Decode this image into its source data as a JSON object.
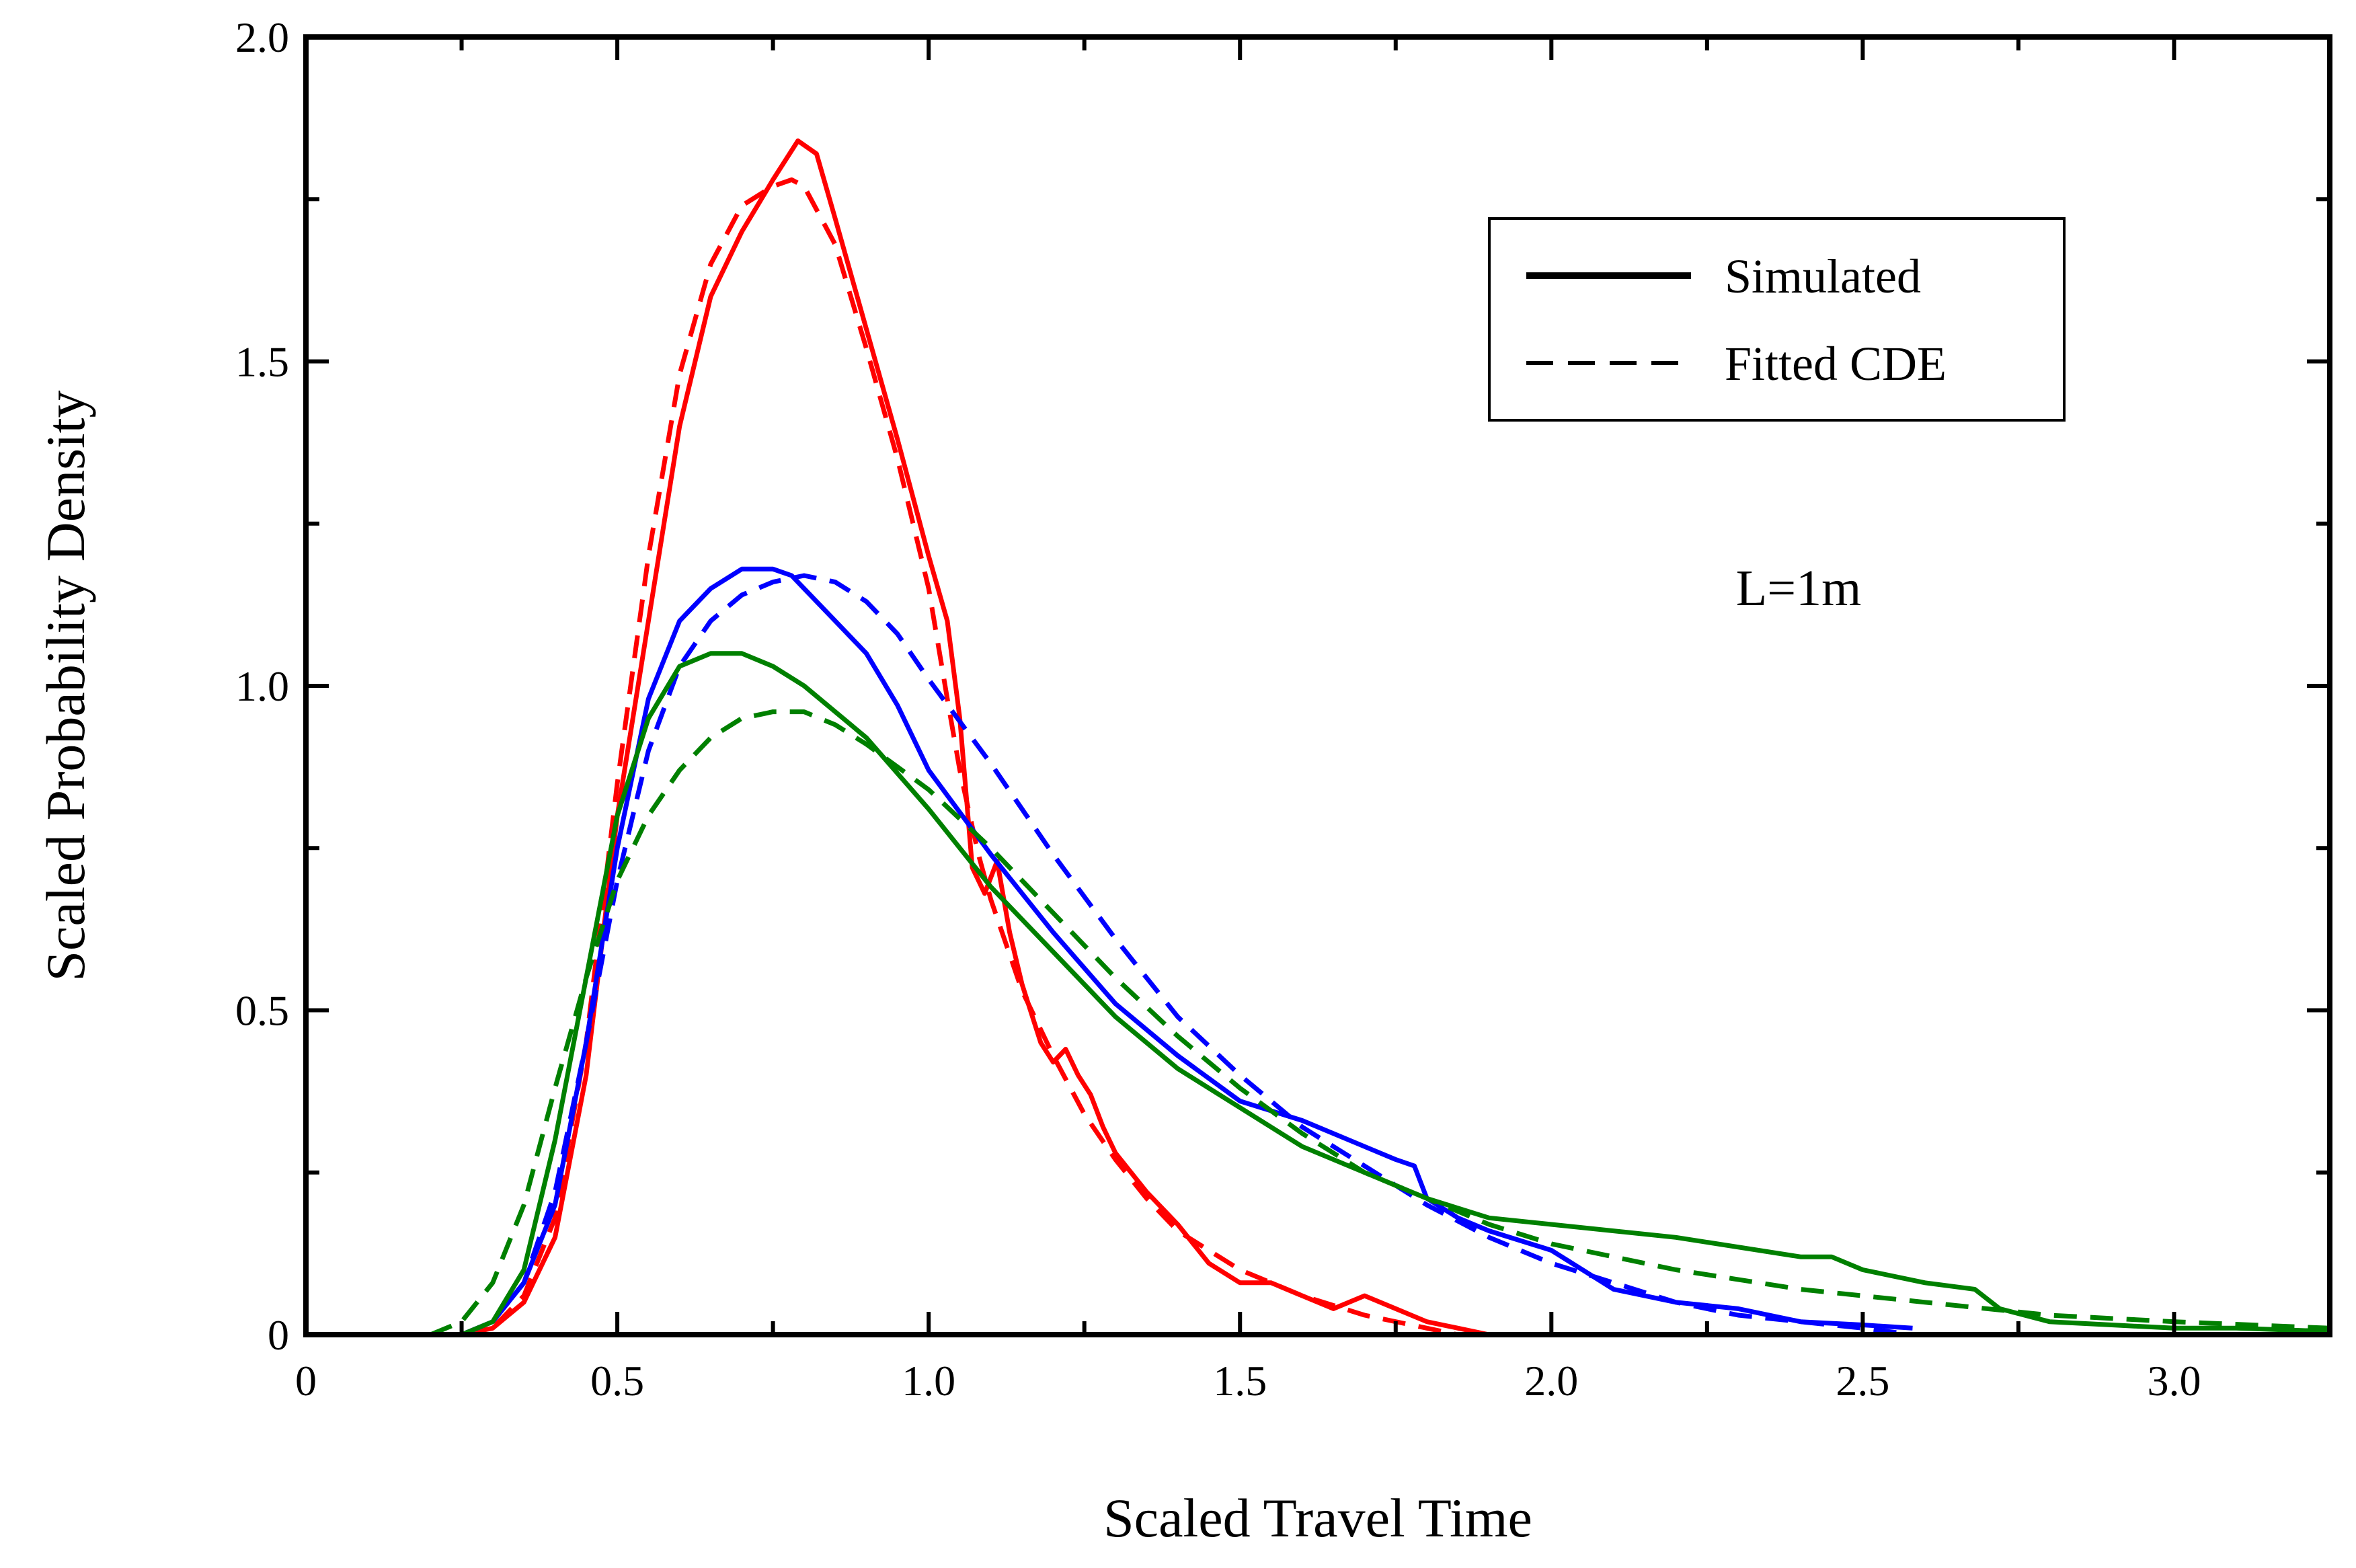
{
  "chart_data": {
    "type": "line",
    "title": "",
    "xlabel": "Scaled Travel Time",
    "ylabel": "Scaled Probability Density",
    "xlim": [
      0,
      3.25
    ],
    "ylim": [
      0,
      2.0
    ],
    "x_ticks": [
      0,
      0.5,
      1.0,
      1.5,
      2.0,
      2.5,
      3.0
    ],
    "x_tick_labels": [
      "0",
      "0.5",
      "1.0",
      "1.5",
      "2.0",
      "2.5",
      "3.0"
    ],
    "y_ticks": [
      0,
      0.5,
      1.0,
      1.5,
      2.0
    ],
    "y_tick_labels": [
      "0",
      "0.5",
      "1.0",
      "1.5",
      "2.0"
    ],
    "grid": false,
    "legend": {
      "placement": "top-right",
      "entries": [
        {
          "label": "Simulated",
          "style": "solid"
        },
        {
          "label": "Fitted CDE",
          "style": "dashed"
        }
      ]
    },
    "annotation": "L=1m",
    "series": [
      {
        "name": "red simulated",
        "color": "#ff0000",
        "style": "solid",
        "x": [
          0.25,
          0.3,
          0.35,
          0.4,
          0.45,
          0.5,
          0.55,
          0.6,
          0.65,
          0.7,
          0.75,
          0.79,
          0.82,
          0.85,
          0.9,
          0.95,
          1.0,
          1.03,
          1.05,
          1.07,
          1.09,
          1.11,
          1.13,
          1.15,
          1.18,
          1.2,
          1.22,
          1.24,
          1.26,
          1.28,
          1.3,
          1.35,
          1.4,
          1.45,
          1.5,
          1.55,
          1.6,
          1.65,
          1.7,
          1.75,
          1.8,
          1.85,
          1.9
        ],
        "y": [
          0.0,
          0.01,
          0.05,
          0.15,
          0.4,
          0.8,
          1.1,
          1.4,
          1.6,
          1.7,
          1.78,
          1.84,
          1.82,
          1.72,
          1.55,
          1.38,
          1.2,
          1.1,
          0.95,
          0.72,
          0.68,
          0.73,
          0.62,
          0.54,
          0.45,
          0.42,
          0.44,
          0.4,
          0.37,
          0.32,
          0.28,
          0.22,
          0.17,
          0.11,
          0.08,
          0.08,
          0.06,
          0.04,
          0.06,
          0.04,
          0.02,
          0.01,
          0.0
        ]
      },
      {
        "name": "red fitted",
        "color": "#ff0000",
        "style": "dashed",
        "x": [
          0.25,
          0.3,
          0.35,
          0.4,
          0.45,
          0.5,
          0.55,
          0.6,
          0.65,
          0.7,
          0.75,
          0.78,
          0.8,
          0.85,
          0.9,
          0.95,
          1.0,
          1.03,
          1.05,
          1.08,
          1.1,
          1.15,
          1.2,
          1.25,
          1.3,
          1.35,
          1.4,
          1.5,
          1.6,
          1.7,
          1.8,
          1.85
        ],
        "y": [
          0.0,
          0.01,
          0.06,
          0.18,
          0.45,
          0.85,
          1.2,
          1.48,
          1.65,
          1.74,
          1.77,
          1.78,
          1.77,
          1.68,
          1.52,
          1.35,
          1.15,
          0.98,
          0.87,
          0.74,
          0.67,
          0.53,
          0.43,
          0.34,
          0.27,
          0.21,
          0.16,
          0.1,
          0.06,
          0.03,
          0.01,
          0.0
        ]
      },
      {
        "name": "blue simulated",
        "color": "#0000ff",
        "style": "solid",
        "x": [
          0.25,
          0.3,
          0.35,
          0.4,
          0.45,
          0.5,
          0.55,
          0.6,
          0.65,
          0.7,
          0.75,
          0.78,
          0.8,
          0.85,
          0.9,
          0.95,
          1.0,
          1.1,
          1.2,
          1.3,
          1.4,
          1.5,
          1.6,
          1.7,
          1.75,
          1.78,
          1.8,
          1.85,
          1.9,
          2.0,
          2.05,
          2.1,
          2.2,
          2.3,
          2.4,
          2.5,
          2.58
        ],
        "y": [
          0.0,
          0.02,
          0.08,
          0.2,
          0.45,
          0.75,
          0.98,
          1.1,
          1.15,
          1.18,
          1.18,
          1.17,
          1.15,
          1.1,
          1.05,
          0.97,
          0.87,
          0.74,
          0.62,
          0.51,
          0.43,
          0.36,
          0.33,
          0.29,
          0.27,
          0.26,
          0.21,
          0.18,
          0.16,
          0.13,
          0.1,
          0.07,
          0.05,
          0.04,
          0.02,
          0.015,
          0.01
        ]
      },
      {
        "name": "blue fitted",
        "color": "#0000ff",
        "style": "dashed",
        "x": [
          0.25,
          0.3,
          0.35,
          0.4,
          0.45,
          0.5,
          0.55,
          0.6,
          0.65,
          0.7,
          0.75,
          0.8,
          0.85,
          0.9,
          0.95,
          1.0,
          1.1,
          1.2,
          1.3,
          1.4,
          1.5,
          1.6,
          1.7,
          1.8,
          1.9,
          2.0,
          2.1,
          2.2,
          2.3,
          2.4,
          2.5,
          2.58
        ],
        "y": [
          0.0,
          0.02,
          0.08,
          0.22,
          0.45,
          0.7,
          0.9,
          1.03,
          1.1,
          1.14,
          1.16,
          1.17,
          1.16,
          1.13,
          1.08,
          1.01,
          0.88,
          0.74,
          0.61,
          0.49,
          0.4,
          0.32,
          0.26,
          0.2,
          0.15,
          0.11,
          0.08,
          0.05,
          0.03,
          0.02,
          0.01,
          0.0
        ]
      },
      {
        "name": "green simulated",
        "color": "#008000",
        "style": "solid",
        "x": [
          0.25,
          0.3,
          0.35,
          0.4,
          0.45,
          0.5,
          0.55,
          0.6,
          0.65,
          0.7,
          0.75,
          0.8,
          0.85,
          0.9,
          1.0,
          1.1,
          1.2,
          1.3,
          1.4,
          1.5,
          1.6,
          1.7,
          1.8,
          1.9,
          2.0,
          2.2,
          2.4,
          2.45,
          2.5,
          2.6,
          2.68,
          2.72,
          2.8,
          2.9,
          3.0,
          3.1,
          3.25
        ],
        "y": [
          0.0,
          0.02,
          0.1,
          0.3,
          0.55,
          0.8,
          0.95,
          1.03,
          1.05,
          1.05,
          1.03,
          1.0,
          0.96,
          0.92,
          0.81,
          0.69,
          0.59,
          0.49,
          0.41,
          0.35,
          0.29,
          0.25,
          0.21,
          0.18,
          0.17,
          0.15,
          0.12,
          0.12,
          0.1,
          0.08,
          0.07,
          0.04,
          0.02,
          0.015,
          0.01,
          0.01,
          0.005
        ]
      },
      {
        "name": "green fitted",
        "color": "#008000",
        "style": "dashed",
        "x": [
          0.2,
          0.25,
          0.3,
          0.35,
          0.4,
          0.45,
          0.5,
          0.55,
          0.6,
          0.65,
          0.7,
          0.75,
          0.8,
          0.85,
          0.9,
          1.0,
          1.1,
          1.2,
          1.3,
          1.4,
          1.5,
          1.6,
          1.7,
          1.8,
          1.9,
          2.0,
          2.2,
          2.4,
          2.6,
          2.8,
          3.0,
          3.25
        ],
        "y": [
          0.0,
          0.02,
          0.08,
          0.2,
          0.38,
          0.55,
          0.7,
          0.8,
          0.87,
          0.92,
          0.95,
          0.96,
          0.96,
          0.94,
          0.91,
          0.84,
          0.75,
          0.65,
          0.55,
          0.46,
          0.38,
          0.31,
          0.25,
          0.21,
          0.17,
          0.14,
          0.1,
          0.07,
          0.05,
          0.03,
          0.02,
          0.01
        ]
      }
    ]
  }
}
